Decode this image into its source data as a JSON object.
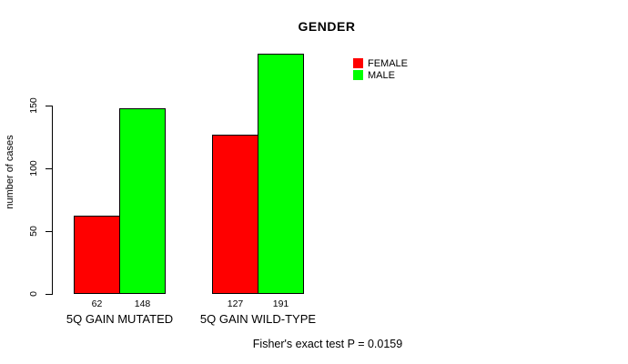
{
  "title": "GENDER",
  "ylabel": "number of cases",
  "footnote": "Fisher's exact test P = 0.0159",
  "legend": {
    "items": [
      {
        "label": "FEMALE",
        "color": "#ff0000"
      },
      {
        "label": "MALE",
        "color": "#00ff00"
      }
    ]
  },
  "chart_data": {
    "type": "bar",
    "title": "GENDER",
    "xlabel": "",
    "ylabel": "number of cases",
    "categories": [
      "5Q GAIN MUTATED",
      "5Q GAIN WILD-TYPE"
    ],
    "series": [
      {
        "name": "FEMALE",
        "color": "#ff0000",
        "values": [
          62,
          127
        ]
      },
      {
        "name": "MALE",
        "color": "#00ff00",
        "values": [
          148,
          191
        ]
      }
    ],
    "bar_value_labels": [
      [
        "62",
        "148"
      ],
      [
        "127",
        "191"
      ]
    ],
    "yticks": [
      0,
      50,
      100,
      150
    ],
    "ylim": [
      0,
      150
    ],
    "grid": false,
    "legend_position": "top-right",
    "bar_border_color": "#000000"
  }
}
